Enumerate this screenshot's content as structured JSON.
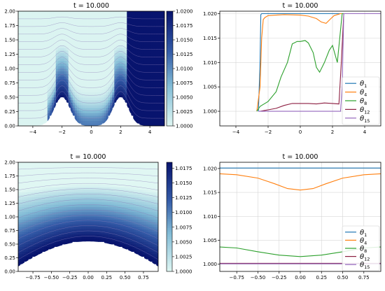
{
  "chart_data": [
    {
      "type": "heatmap",
      "title": "t = 10.000",
      "xlim": [
        -5,
        5
      ],
      "ylim": [
        0,
        2
      ],
      "xticks": [
        "−4",
        "−2",
        "0",
        "2",
        "4"
      ],
      "yticks": [
        "0.00",
        "0.25",
        "0.50",
        "0.75",
        "1.00",
        "1.25",
        "1.50",
        "1.75",
        "2.00"
      ],
      "bottom_boundary": "two bumps of height 0.5 at x = −2 and x = 2",
      "colorbar": {
        "range": [
          1.0,
          1.02
        ],
        "ticks": [
          "1.0000",
          "1.0025",
          "1.0050",
          "1.0075",
          "1.0100",
          "1.0125",
          "1.0150",
          "1.0175",
          "1.0200"
        ],
        "colormap": "light-cyan to dark-blue"
      }
    },
    {
      "type": "line",
      "title": "t = 10.000",
      "xlim": [
        -5,
        5
      ],
      "ylim": [
        0.997,
        1.0205
      ],
      "xticks": [
        "−4",
        "−2",
        "0",
        "2",
        "4"
      ],
      "yticks": [
        "1.000",
        "1.005",
        "1.010",
        "1.015",
        "1.020"
      ],
      "grid": true,
      "legend_position": "lower-right",
      "series": [
        {
          "name": "θ1",
          "sub": "1",
          "color": "#1f77b4",
          "x": [
            -2.6,
            -2.5,
            -2.45,
            -2.4,
            2.45,
            2.5,
            2.6,
            5
          ],
          "y": [
            1.0,
            1.01,
            1.0198,
            1.02,
            1.02,
            1.02,
            1.02,
            1.02
          ]
        },
        {
          "name": "θ4",
          "sub": "4",
          "color": "#ff7f0e",
          "x": [
            -2.7,
            -2.5,
            -2.4,
            -2.3,
            -2.2,
            -2.0,
            -1.5,
            -1.0,
            0,
            0.5,
            1.0,
            1.3,
            1.6,
            1.9,
            2.1,
            2.5,
            5
          ],
          "y": [
            1.0,
            1.005,
            1.015,
            1.0188,
            1.0192,
            1.0196,
            1.0197,
            1.0198,
            1.0197,
            1.0195,
            1.019,
            1.0183,
            1.018,
            1.019,
            1.0196,
            1.02,
            1.02
          ]
        },
        {
          "name": "θ8",
          "sub": "8",
          "color": "#2ca02c",
          "x": [
            -2.7,
            -2.5,
            -2.4,
            -2.0,
            -1.5,
            -1.2,
            -0.8,
            -0.5,
            -0.2,
            0,
            0.3,
            0.5,
            0.8,
            1.0,
            1.2,
            1.5,
            1.8,
            2.0,
            2.3,
            2.6,
            5
          ],
          "y": [
            1.0,
            1.001,
            1.0012,
            1.002,
            1.004,
            1.007,
            1.01,
            1.0138,
            1.0143,
            1.0143,
            1.0145,
            1.014,
            1.012,
            1.009,
            1.008,
            1.01,
            1.0125,
            1.0135,
            1.01,
            1.02,
            1.02
          ]
        },
        {
          "name": "θ12",
          "sub": "12",
          "color": "#8c1d40",
          "x": [
            -2.5,
            -2.0,
            -1.5,
            -1.0,
            -0.5,
            0,
            0.5,
            1.0,
            1.5,
            2.0,
            2.4,
            2.55,
            2.7,
            5
          ],
          "y": [
            1.0,
            1.0003,
            1.0006,
            1.0012,
            1.0016,
            1.0016,
            1.0016,
            1.0015,
            1.0017,
            1.0016,
            1.0015,
            1.01,
            1.02,
            1.02
          ]
        },
        {
          "name": "θ15",
          "sub": "15",
          "color": "#9467bd",
          "x": [
            -2.6,
            2.5,
            2.6,
            2.7,
            5
          ],
          "y": [
            1.0,
            1.0,
            1.005,
            1.02,
            1.02
          ]
        }
      ]
    },
    {
      "type": "heatmap",
      "title": "t = 10.000",
      "xlim": [
        -0.95,
        0.95
      ],
      "ylim": [
        0,
        2
      ],
      "xticks": [
        "−0.75",
        "−0.50",
        "−0.25",
        "0.00",
        "0.25",
        "0.50",
        "0.75"
      ],
      "yticks": [
        "0.00",
        "0.25",
        "0.50",
        "0.75",
        "1.00",
        "1.25",
        "1.50",
        "1.75",
        "2.00"
      ],
      "bottom_boundary": "single arch of height 0.5 at x = 0",
      "colorbar": {
        "range": [
          1.0,
          1.0185
        ],
        "ticks": [
          "1.0000",
          "1.0025",
          "1.0050",
          "1.0075",
          "1.0100",
          "1.0125",
          "1.0150",
          "1.0175"
        ],
        "colormap": "light-cyan to dark-blue"
      }
    },
    {
      "type": "line",
      "title": "t = 10.000",
      "xlim": [
        -0.95,
        0.95
      ],
      "ylim": [
        0.9985,
        1.0213
      ],
      "xticks": [
        "−0.75",
        "−0.50",
        "−0.25",
        "0.00",
        "0.25",
        "0.50",
        "0.75"
      ],
      "yticks": [
        "1.000",
        "1.005",
        "1.010",
        "1.015",
        "1.020"
      ],
      "grid": true,
      "legend_position": "lower-right",
      "series": [
        {
          "name": "θ1",
          "sub": "1",
          "color": "#1f77b4",
          "x": [
            -0.95,
            0.95
          ],
          "y": [
            1.0201,
            1.0201
          ]
        },
        {
          "name": "θ4",
          "sub": "4",
          "color": "#ff7f0e",
          "x": [
            -0.95,
            -0.75,
            -0.5,
            -0.3,
            -0.15,
            0,
            0.15,
            0.3,
            0.5,
            0.75,
            0.95
          ],
          "y": [
            1.0189,
            1.0187,
            1.018,
            1.0168,
            1.0158,
            1.0155,
            1.0158,
            1.0168,
            1.018,
            1.0187,
            1.0189
          ]
        },
        {
          "name": "θ8",
          "sub": "8",
          "color": "#2ca02c",
          "x": [
            -0.95,
            -0.75,
            -0.5,
            -0.25,
            0,
            0.25,
            0.5,
            0.75,
            0.95
          ],
          "y": [
            1.0036,
            1.0034,
            1.0026,
            1.0019,
            1.0016,
            1.0019,
            1.0026,
            1.0034,
            1.0036
          ]
        },
        {
          "name": "θ12",
          "sub": "12",
          "color": "#8c1d40",
          "x": [
            -0.95,
            0.95
          ],
          "y": [
            1.0002,
            1.0002
          ]
        },
        {
          "name": "θ15",
          "sub": "15",
          "color": "#9467bd",
          "x": [
            -0.95,
            0.95
          ],
          "y": [
            1.0001,
            1.0001
          ]
        }
      ]
    }
  ]
}
